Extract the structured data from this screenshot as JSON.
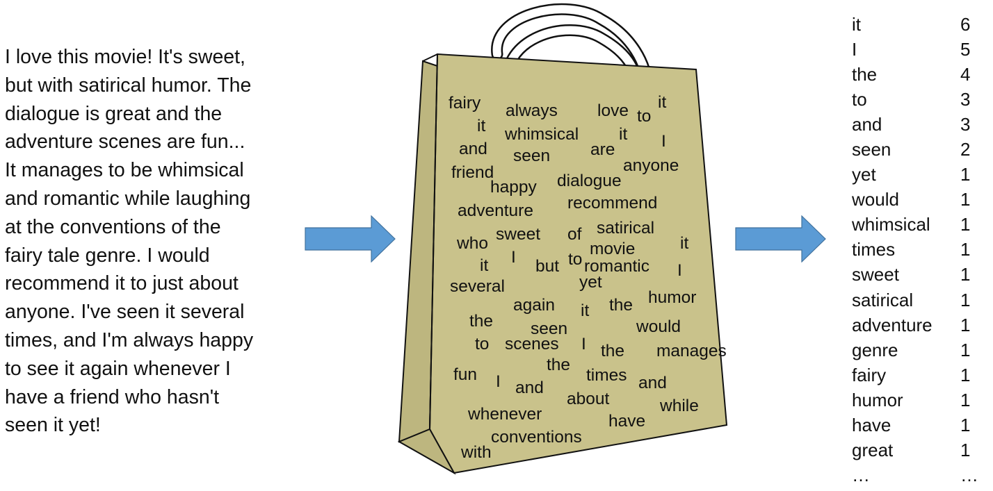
{
  "review": {
    "text": "I love this movie! It's sweet,\nbut with satirical humor. The\ndialogue is great and the\nadventure scenes are fun...\nIt manages to be whimsical\nand romantic while laughing\nat the conventions of the\nfairy tale genre. I would\nrecommend it to just about\nanyone. I've seen it several\ntimes, and I'm always happy\nto see it again whenever I\nhave a friend who hasn't\nseen it yet!"
  },
  "arrows": {
    "color": "#5b9bd5",
    "stroke": "#41719c"
  },
  "bag": {
    "fill": "#c9c28b",
    "side_fill": "#bdb67f",
    "outline": "#111111",
    "words": [
      "fairy",
      "always",
      "love",
      "to",
      "it",
      "it",
      "whimsical",
      "it",
      "and",
      "seen",
      "are",
      "I",
      "friend",
      "anyone",
      "happy",
      "dialogue",
      "adventure",
      "recommend",
      "who",
      "sweet",
      "of",
      "satirical",
      "it",
      "movie",
      "it",
      "I",
      "but",
      "to",
      "romantic",
      "I",
      "several",
      "yet",
      "again",
      "it",
      "the",
      "humor",
      "the",
      "seen",
      "would",
      "to",
      "scenes",
      "I",
      "the",
      "manages",
      "the",
      "fun",
      "I",
      "and",
      "times",
      "and",
      "about",
      "while",
      "whenever",
      "have",
      "conventions",
      "with"
    ]
  },
  "counts": {
    "rows": [
      {
        "word": "it",
        "count": "6"
      },
      {
        "word": "I",
        "count": "5"
      },
      {
        "word": "the",
        "count": "4"
      },
      {
        "word": "to",
        "count": "3"
      },
      {
        "word": "and",
        "count": "3"
      },
      {
        "word": "seen",
        "count": "2"
      },
      {
        "word": "yet",
        "count": "1"
      },
      {
        "word": "would",
        "count": "1"
      },
      {
        "word": "whimsical",
        "count": "1"
      },
      {
        "word": "times",
        "count": "1"
      },
      {
        "word": "sweet",
        "count": "1"
      },
      {
        "word": "satirical",
        "count": "1"
      },
      {
        "word": "adventure",
        "count": "1"
      },
      {
        "word": "genre",
        "count": "1"
      },
      {
        "word": "fairy",
        "count": "1"
      },
      {
        "word": "humor",
        "count": "1"
      },
      {
        "word": "have",
        "count": "1"
      },
      {
        "word": "great",
        "count": "1"
      },
      {
        "word": "…",
        "count": "…"
      }
    ]
  }
}
